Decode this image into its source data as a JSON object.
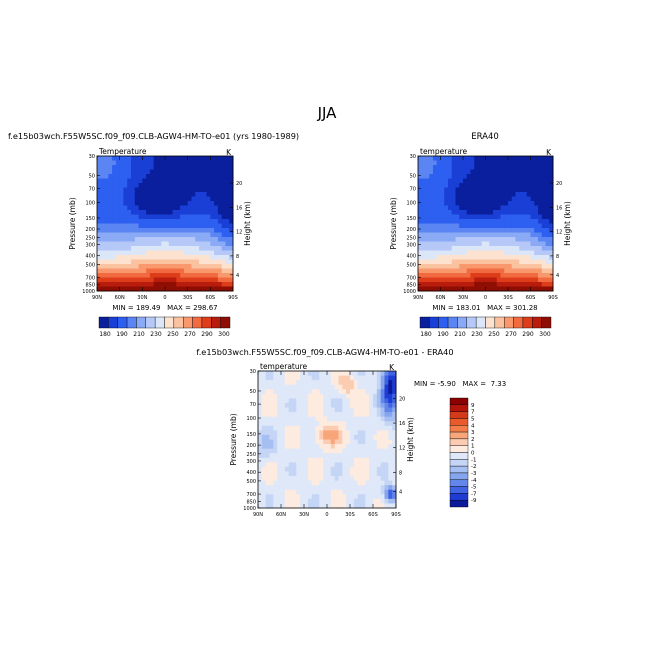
{
  "title": "JJA",
  "panels": [
    {
      "id": "model",
      "left_title": "f.e15b03wch.F55W5SC.f09_f09.CLB-AGW4-HM-TO-e01 (yrs 1980-1989)",
      "right_title": "",
      "variable_label": "Temperature",
      "units": "K",
      "min_max_text": "MIN = 189.49   MAX = 298.67"
    },
    {
      "id": "obs",
      "left_title": "",
      "right_title": "ERA40",
      "variable_label": "temperature",
      "units": "K",
      "min_max_text": "MIN = 183.01   MAX = 301.28"
    },
    {
      "id": "diff",
      "left_title": "f.e15b03wch.F55W5SC.f09_f09.CLB-AGW4-HM-TO-e01 - ERA40",
      "right_title": "",
      "variable_label": "temperature",
      "units": "K",
      "min_max_text": "MIN = -5.90   MAX =  7.33"
    }
  ],
  "chart_data": [
    {
      "type": "heatmap",
      "panel": "model",
      "xlabel": "",
      "ylabel": "Pressure (mb)",
      "ylabel_right": "Height (km)",
      "x_ticks": [
        "90N",
        "60N",
        "30N",
        "0",
        "30S",
        "60S",
        "90S"
      ],
      "x_values": [
        90,
        60,
        30,
        0,
        -30,
        -60,
        -90
      ],
      "y_ticks": [
        "30",
        "50",
        "70",
        "100",
        "150",
        "200",
        "250",
        "300",
        "400",
        "500",
        "700",
        "850",
        "1000"
      ],
      "y_values": [
        30,
        50,
        70,
        100,
        150,
        200,
        250,
        300,
        400,
        500,
        700,
        850,
        1000
      ],
      "y_scale": "log",
      "height_ticks": [
        "20",
        "16",
        "12",
        "8",
        "4"
      ],
      "min": 189.49,
      "max": 298.67
    },
    {
      "type": "heatmap",
      "panel": "obs",
      "xlabel": "",
      "ylabel": "Pressure (mb)",
      "ylabel_right": "Height (km)",
      "x_ticks": [
        "90N",
        "60N",
        "30N",
        "0",
        "30S",
        "60S",
        "90S"
      ],
      "x_values": [
        90,
        60,
        30,
        0,
        -30,
        -60,
        -90
      ],
      "y_ticks": [
        "30",
        "50",
        "70",
        "100",
        "150",
        "200",
        "250",
        "300",
        "400",
        "500",
        "700",
        "850",
        "1000"
      ],
      "y_values": [
        30,
        50,
        70,
        100,
        150,
        200,
        250,
        300,
        400,
        500,
        700,
        850,
        1000
      ],
      "y_scale": "log",
      "height_ticks": [
        "20",
        "16",
        "12",
        "8",
        "4"
      ],
      "min": 183.01,
      "max": 301.28
    },
    {
      "type": "heatmap",
      "panel": "diff",
      "xlabel": "",
      "ylabel": "Pressure (mb)",
      "ylabel_right": "Height (km)",
      "x_ticks": [
        "90N",
        "60N",
        "30N",
        "0",
        "30S",
        "60S",
        "90S"
      ],
      "x_values": [
        90,
        60,
        30,
        0,
        -30,
        -60,
        -90
      ],
      "y_ticks": [
        "30",
        "50",
        "70",
        "100",
        "150",
        "200",
        "250",
        "300",
        "400",
        "500",
        "700",
        "850",
        "1000"
      ],
      "y_values": [
        30,
        50,
        70,
        100,
        150,
        200,
        250,
        300,
        400,
        500,
        700,
        850,
        1000
      ],
      "y_scale": "log",
      "height_ticks": [
        "20",
        "16",
        "12",
        "8",
        "4"
      ],
      "min": -5.9,
      "max": 7.33
    }
  ],
  "colorbars": {
    "temperature": {
      "orientation": "horizontal",
      "labels": [
        "180",
        "190",
        "210",
        "230",
        "250",
        "270",
        "290",
        "300"
      ],
      "colors": [
        "#0a1f9e",
        "#1a3fd6",
        "#2d5ff0",
        "#5a85f2",
        "#8aaaf5",
        "#b5c8f7",
        "#dbe6f9",
        "#fde3cf",
        "#fbc2a0",
        "#f8986c",
        "#f26a40",
        "#dd3d1b",
        "#b81c0c",
        "#8e0e04"
      ]
    },
    "difference": {
      "orientation": "vertical",
      "labels": [
        "9",
        "7",
        "5",
        "4",
        "3",
        "2",
        "1",
        "0",
        "-1",
        "-2",
        "-3",
        "-4",
        "-5",
        "-7",
        "-9"
      ],
      "colors": [
        "#8b0000",
        "#b3150b",
        "#d43a1a",
        "#ea5a2a",
        "#f47e4a",
        "#f9a57a",
        "#fcccb2",
        "#fdebe0",
        "#dfe8f8",
        "#c5d5f5",
        "#a6bff2",
        "#85a5ee",
        "#6286ea",
        "#3f63e2",
        "#1e3cd4",
        "#0a1a9a"
      ]
    }
  }
}
